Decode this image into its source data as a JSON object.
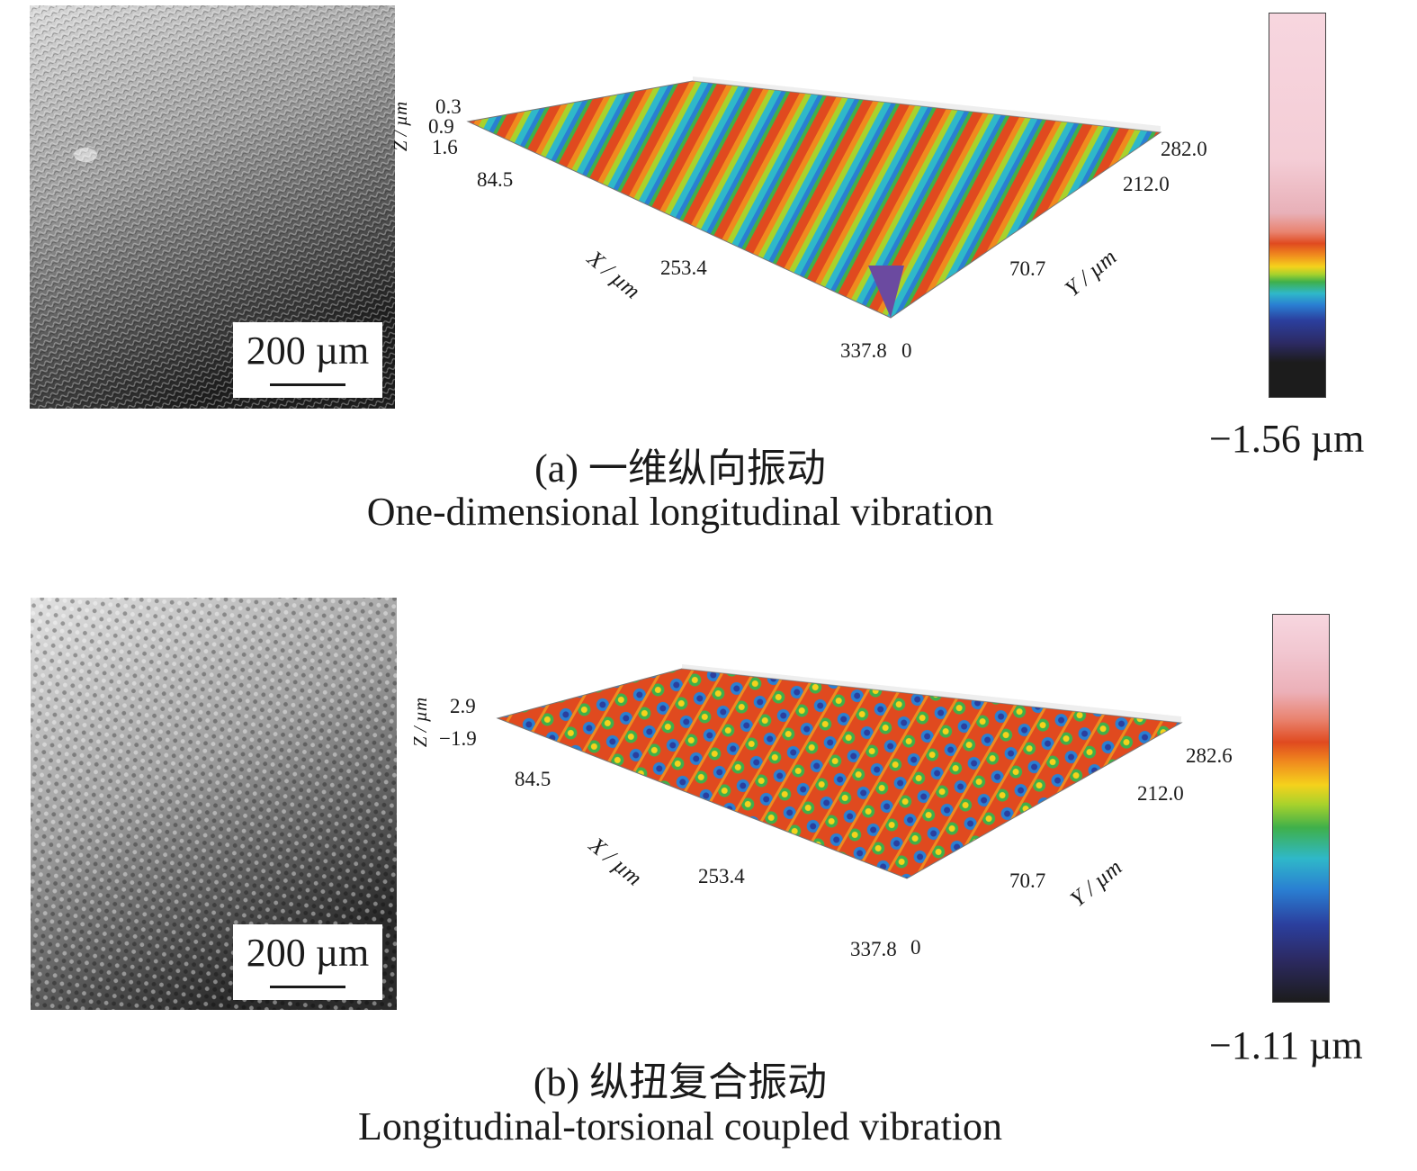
{
  "panels": [
    {
      "id": "a",
      "scale_bar_label": "200 µm",
      "plot": {
        "z_label": "Z / µm",
        "z_ticks": [
          "0.3",
          "0.9",
          "1.6"
        ],
        "x_label": "X / µm",
        "x_ticks": [
          "84.5",
          "253.4",
          "337.8"
        ],
        "y_label": "Y / µm",
        "y_ticks": [
          "0",
          "70.7",
          "212.0",
          "282.0"
        ]
      },
      "colorbar_min": "−1.56 µm",
      "caption_cn": "(a) 一维纵向振动",
      "caption_en": "One-dimensional longitudinal vibration"
    },
    {
      "id": "b",
      "scale_bar_label": "200 µm",
      "plot": {
        "z_label": "Z / µm",
        "z_ticks": [
          "2.9",
          "−1.9"
        ],
        "x_label": "X / µm",
        "x_ticks": [
          "84.5",
          "253.4",
          "337.8"
        ],
        "y_label": "Y / µm",
        "y_ticks": [
          "0",
          "70.7",
          "212.0",
          "282.6"
        ]
      },
      "colorbar_min": "−1.11 µm",
      "caption_cn": "(b) 纵扭复合振动",
      "caption_en": "Longitudinal-torsional coupled vibration"
    }
  ],
  "colormap": [
    "#f7d6df",
    "#f1b9c4",
    "#e9836f",
    "#e04a1f",
    "#f08a1e",
    "#f5d21c",
    "#a8d22c",
    "#3fb04a",
    "#2fb8c9",
    "#2a7fd2",
    "#2b3f9e",
    "#2c2a63",
    "#1c1c1c"
  ]
}
